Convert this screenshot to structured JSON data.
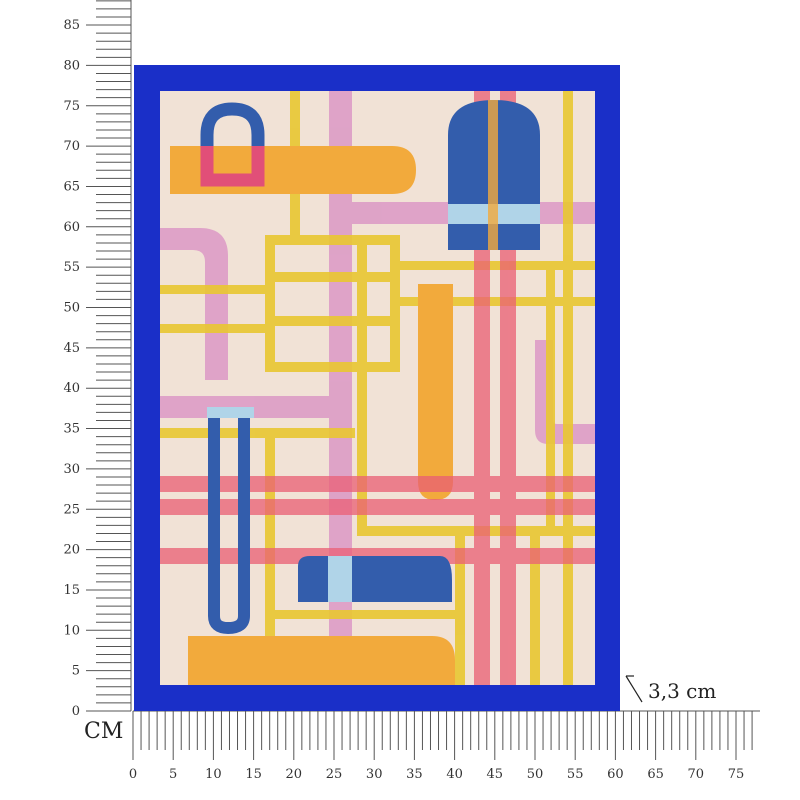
{
  "unit_label": "CM",
  "dimension_label": "3,3 cm",
  "vertical_ruler": {
    "min": 0,
    "max": 85,
    "label_step": 5,
    "labels": [
      "0",
      "5",
      "10",
      "15",
      "20",
      "25",
      "30",
      "35",
      "40",
      "45",
      "50",
      "55",
      "60",
      "65",
      "70",
      "75",
      "80",
      "85"
    ]
  },
  "horizontal_ruler": {
    "min": 0,
    "max": 75,
    "label_step": 5,
    "labels": [
      "0",
      "5",
      "10",
      "15",
      "20",
      "25",
      "30",
      "35",
      "40",
      "45",
      "50",
      "55",
      "60",
      "65",
      "70",
      "75"
    ]
  },
  "artwork": {
    "frame_color": "#1a2fc8",
    "background_color": "#f1e2d6",
    "colors": {
      "yellow": "#e8c420",
      "pink": "#d991c4",
      "red": "#e9506a",
      "orange": "#f3a42c",
      "blue": "#1f4fa8",
      "light_blue": "#a9d3ea",
      "magenta": "#e0406e"
    }
  }
}
